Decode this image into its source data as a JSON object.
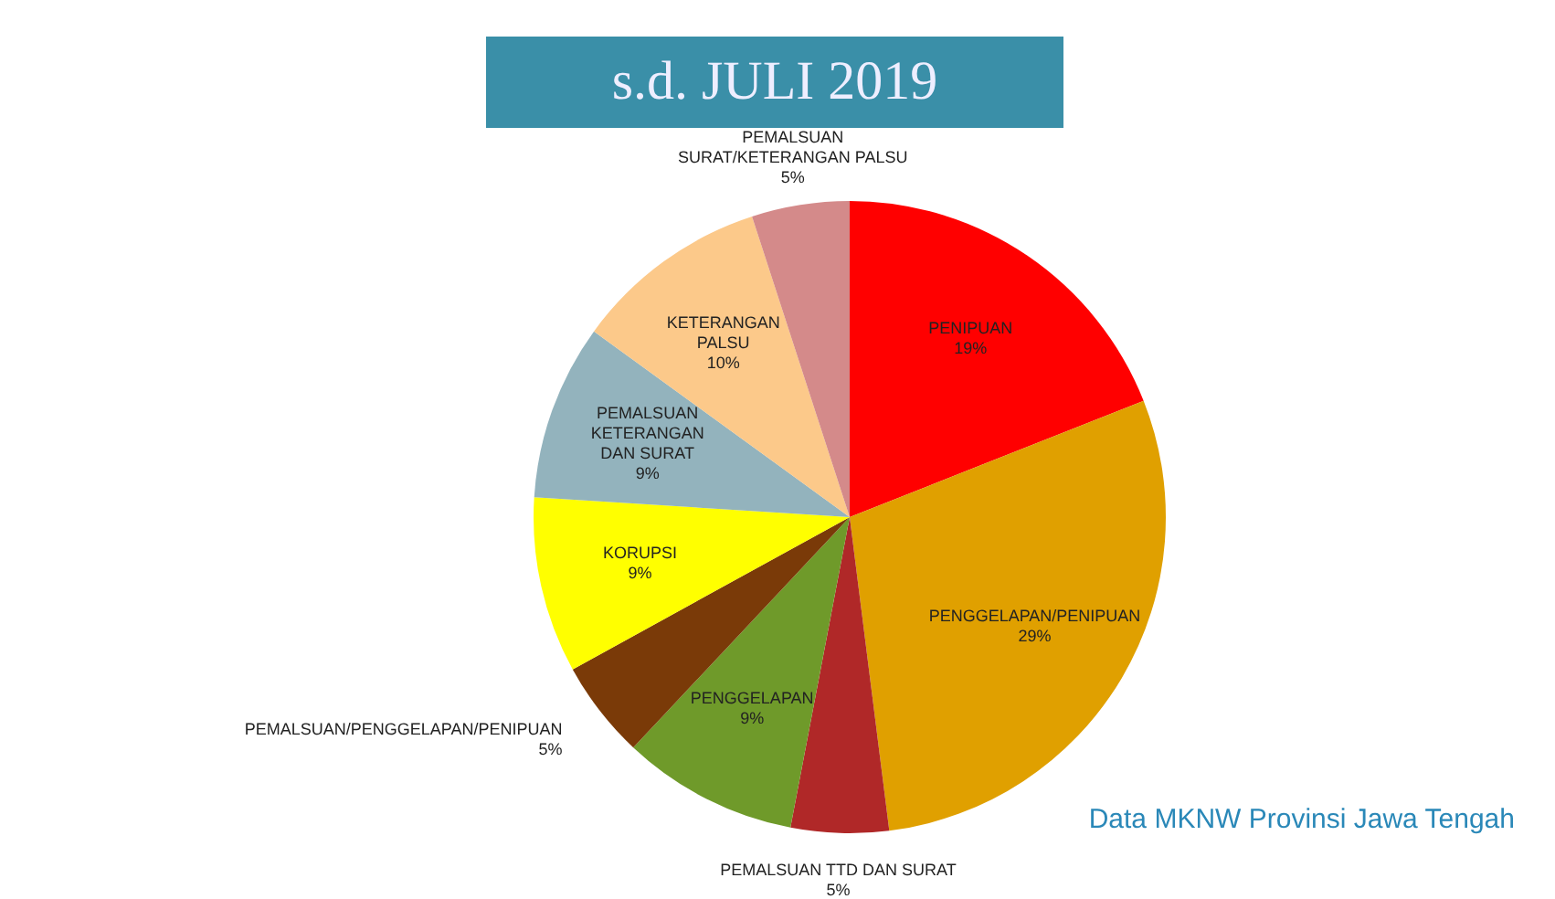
{
  "chart_data": {
    "type": "pie",
    "title": "s.d. JULI 2019",
    "categories": [
      "PENIPUAN",
      "PENGGELAPAN/PENIPUAN",
      "PEMALSUAN TTD DAN SURAT",
      "PENGGELAPAN",
      "PEMALSUAN/PENGGELAPAN/PENIPUAN",
      "KORUPSI",
      "PEMALSUAN KETERANGAN DAN SURAT",
      "KETERANGAN PALSU",
      "PEMALSUAN SURAT/KETERANGAN PALSU"
    ],
    "values": [
      19,
      29,
      5,
      9,
      5,
      9,
      9,
      10,
      5
    ],
    "value_labels": [
      "19%",
      "29%",
      "5%",
      "9%",
      "5%",
      "9%",
      "9%",
      "10%",
      "5%"
    ],
    "colors": [
      "#ff0000",
      "#e0a000",
      "#b02828",
      "#6f9a2a",
      "#7a3a08",
      "#ffff00",
      "#93b3bd",
      "#fcc98a",
      "#d48a8a"
    ],
    "annotations": [
      "Data MKNW Provinsi Jawa Tengah"
    ],
    "legend": false
  }
}
